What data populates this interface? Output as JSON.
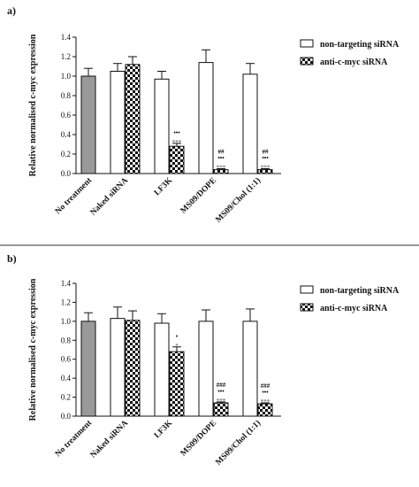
{
  "chart_data": [
    {
      "panel": "a)",
      "type": "bar",
      "ylabel": "Relative normalised c-myc expression",
      "ylim": [
        0,
        1.4
      ],
      "yticks": [
        "0.0",
        "0.2",
        "0.4",
        "0.6",
        "0.8",
        "1.0",
        "1.2",
        "1.4"
      ],
      "categories": [
        "No treatment",
        "Naked siRNA",
        "LF3K",
        "MS09/DOPE",
        "MS09/Chol (1:1)"
      ],
      "series": [
        {
          "name": "non-targeting siRNA",
          "values": [
            1.0,
            1.05,
            0.97,
            1.14,
            1.02
          ],
          "errors": [
            0.08,
            0.08,
            0.08,
            0.13,
            0.11
          ]
        },
        {
          "name": "anti-c-myc siRNA",
          "values": [
            null,
            1.12,
            0.28,
            0.04,
            0.04
          ],
          "errors": [
            null,
            0.08,
            0.03,
            0.01,
            0.01
          ]
        }
      ],
      "annotations": [
        {
          "category": "LF3K",
          "lines": [
            "•••",
            "***"
          ]
        },
        {
          "category": "MS09/DOPE",
          "lines": [
            "##",
            "•••",
            "***"
          ]
        },
        {
          "category": "MS09/Chol (1:1)",
          "lines": [
            "##",
            "•••",
            "***"
          ]
        }
      ],
      "legend": {
        "placement": "top-right",
        "items": [
          "non-targeting siRNA",
          "anti-c-myc siRNA"
        ]
      }
    },
    {
      "panel": "b)",
      "type": "bar",
      "ylabel": "Relative normalised c-myc expression",
      "ylim": [
        0,
        1.4
      ],
      "yticks": [
        "0.0",
        "0.2",
        "0.4",
        "0.6",
        "0.8",
        "1.0",
        "1.2",
        "1.4"
      ],
      "categories": [
        "No treatment",
        "Naked siRNA",
        "LF3K",
        "MS09/DOPE",
        "MS09/Chol (1:1)"
      ],
      "series": [
        {
          "name": "non-targeting siRNA",
          "values": [
            1.0,
            1.03,
            0.98,
            1.0,
            1.0
          ],
          "errors": [
            0.09,
            0.12,
            0.1,
            0.12,
            0.13
          ]
        },
        {
          "name": "anti-c-myc siRNA",
          "values": [
            null,
            1.01,
            0.68,
            0.14,
            0.13
          ],
          "errors": [
            null,
            0.1,
            0.05,
            0.01,
            0.01
          ]
        }
      ],
      "annotations": [
        {
          "category": "LF3K",
          "lines": [
            "•",
            "*"
          ]
        },
        {
          "category": "MS09/DOPE",
          "lines": [
            "###",
            "•••",
            "***"
          ]
        },
        {
          "category": "MS09/Chol (1:1)",
          "lines": [
            "###",
            "•••",
            "***"
          ]
        }
      ],
      "legend": {
        "placement": "top-right",
        "items": [
          "non-targeting siRNA",
          "anti-c-myc siRNA"
        ]
      }
    }
  ],
  "colors": {
    "no_treatment": "#999999",
    "non_targeting": "#ffffff",
    "anti_cmyc_pattern": "checkerboard black/white",
    "stars": "#7a7a7a",
    "dots_hashes": "#111111"
  }
}
